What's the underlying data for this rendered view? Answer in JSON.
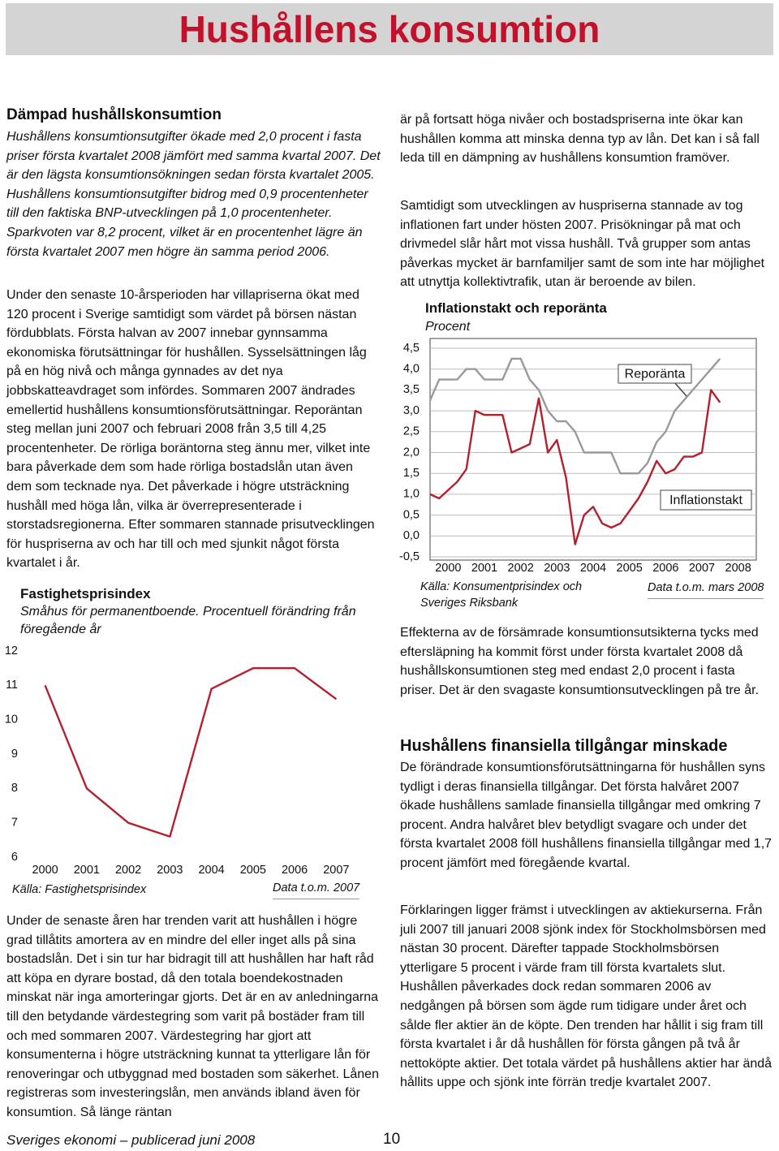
{
  "header": {
    "title": "Hushållens konsumtion"
  },
  "left_column": {
    "heading": "Dämpad hushållskonsumtion",
    "lead": "Hushållens konsumtionsutgifter ökade med 2,0 procent i fasta priser första kvartalet 2008 jämfört med samma kvartal 2007. Det är den lägsta konsumtionsökningen sedan första kvartalet 2005. Hushållens konsumtionsutgifter bidrog med 0,9 procentenheter till den faktiska BNP-utvecklingen på 1,0 procentenheter. Sparkvoten var 8,2 procent, vilket är en procentenhet lägre än första kvartalet 2007 men högre än samma period 2006.",
    "paragraphs": [
      "Under den senaste 10-årsperioden har villapriserna ökat med 120 procent i Sverige samtidigt som värdet på börsen nästan fördubblats. Första halvan av 2007 innebar gynnsamma ekonomiska förutsättningar för hushållen. Sysselsättningen låg på en hög nivå och många gynnades av det nya jobbskatteavdraget som infördes. Sommaren 2007 ändrades emellertid hushållens konsumtionsförutsättningar. Reporäntan steg mellan juni 2007 och februari 2008 från 3,5 till 4,25 procentenheter. De rörliga boräntorna steg ännu mer, vilket inte bara påverkade dem som hade rörliga bostadslån utan även dem som tecknade nya. Det påverkade i högre utsträckning hushåll med höga lån, vilka är överrepresenterade i storstadsregionerna. Efter sommaren stannade prisutvecklingen för huspriserna av och har till och med sjunkit något första kvartalet i år.",
      "Under de senaste åren har trenden varit att hushållen i högre grad tillåtits amortera av en mindre del eller inget alls på sina bostadslån. Det i sin tur har bidragit till att hushållen har haft råd att köpa en dyrare bostad, då den totala boendekostnaden minskat när inga amorteringar gjorts. Det är en av anledningarna till den betydande värdestegring som varit på bostäder fram till och med sommaren 2007. Värdestegring har gjort att konsumenterna i högre utsträckning kunnat ta ytterligare lån för renoveringar och utbyggnad med bostaden som säkerhet. Lånen registreras som investeringslån, men används ibland även för konsumtion. Så länge räntan"
    ]
  },
  "right_column": {
    "paragraphs_top": [
      "är på fortsatt höga nivåer och bostadspriserna inte ökar kan hushållen komma att minska denna typ av lån. Det kan i så fall leda till en dämpning av hushållens konsumtion framöver.",
      "Samtidigt som utvecklingen av huspriserna stannade av tog inflationen fart under hösten 2007. Prisökningar på mat och drivmedel slår hårt mot vissa hushåll. Två grupper som antas påverkas mycket är barnfamiljer samt de som inte har möjlighet att utnyttja kollektivtrafik, utan är beroende av bilen."
    ],
    "paragraph_mid": "Effekterna av de försämrade konsumtionsutsikterna tycks med eftersläpning ha kommit först under första kvartalet 2008 då hushållskonsumtionen steg med endast 2,0 procent i fasta priser. Det är den svagaste konsumtionsutvecklingen på tre år.",
    "heading": "Hushållens finansiella tillgångar minskade",
    "paragraphs": [
      "De förändrade konsumtionsförutsättningarna för hushållen syns tydligt i deras finansiella tillgångar. Det första halvåret 2007 ökade hushållens samlade finansiella tillgångar med omkring 7 procent. Andra halvåret blev betydligt svagare och under det första kvartalet 2008 föll hushållens finansiella tillgångar med 1,7 procent jämfört med föregående kvartal.",
      "Förklaringen ligger främst i utvecklingen av aktiekurserna. Från juli 2007 till januari 2008 sjönk index för Stockholmsbörsen med nästan 30 procent. Därefter tappade Stockholmsbörsen ytterligare 5 procent i värde fram till första kvartalets slut. Hushållen påverkades dock redan sommaren 2006 av nedgången på börsen som ägde rum tidigare under året och sålde fler aktier än de köpte. Den trenden har hållit i sig fram till första kvartalet i år då hushållen för första gången på två år nettoköpte aktier. Det totala värdet på hushållens aktier har ändå hållits uppe och sjönk inte förrän tredje kvartalet 2007."
    ]
  },
  "chart_data": [
    {
      "type": "line",
      "title": "Fastighetsprisindex",
      "subtitle": "Småhus för permanentboende. Procentuell förändring från föregående år",
      "x": [
        2000,
        2001,
        2002,
        2003,
        2004,
        2005,
        2006,
        2007
      ],
      "series": [
        {
          "color": "#b3202e",
          "values": [
            11.0,
            8.0,
            7.0,
            6.6,
            10.9,
            11.5,
            11.5,
            10.6
          ]
        }
      ],
      "xlim": [
        1999.5,
        2007.5
      ],
      "xticks": [
        2000,
        2001,
        2002,
        2003,
        2004,
        2005,
        2006,
        2007
      ],
      "ylim": [
        6,
        12
      ],
      "yticks": [
        6,
        7,
        8,
        9,
        10,
        11,
        12
      ],
      "grid": false,
      "source": "Källa: Fastighetsprisindex",
      "note": "Data t.o.m. 2007"
    },
    {
      "type": "line",
      "title": "Inflationstakt och reporänta",
      "subtitle": "Procent",
      "x": [
        2000,
        2000.25,
        2000.5,
        2000.75,
        2001,
        2001.25,
        2001.5,
        2001.75,
        2002,
        2002.25,
        2002.5,
        2002.75,
        2003,
        2003.25,
        2003.5,
        2003.75,
        2004,
        2004.25,
        2004.5,
        2004.75,
        2005,
        2005.25,
        2005.5,
        2005.75,
        2006,
        2006.25,
        2006.5,
        2006.75,
        2007,
        2007.25,
        2007.5,
        2007.75,
        2008
      ],
      "series": [
        {
          "name": "Reporänta",
          "color": "#9a9a9a",
          "values": [
            3.25,
            3.75,
            3.75,
            3.75,
            4.0,
            4.0,
            3.75,
            3.75,
            3.75,
            4.25,
            4.25,
            3.75,
            3.5,
            3.0,
            2.75,
            2.75,
            2.5,
            2.0,
            2.0,
            2.0,
            2.0,
            1.5,
            1.5,
            1.5,
            1.75,
            2.25,
            2.5,
            3.0,
            3.25,
            3.5,
            3.75,
            4.0,
            4.25
          ]
        },
        {
          "name": "Inflationstakt",
          "color": "#b3202e",
          "values": [
            1.0,
            0.9,
            1.1,
            1.3,
            1.6,
            3.0,
            2.9,
            2.9,
            2.9,
            2.0,
            2.1,
            2.2,
            3.3,
            2.0,
            2.3,
            1.4,
            -0.2,
            0.5,
            0.7,
            0.3,
            0.2,
            0.3,
            0.6,
            0.9,
            1.3,
            1.8,
            1.5,
            1.6,
            1.9,
            1.9,
            2.0,
            3.5,
            3.2
          ]
        }
      ],
      "xlim": [
        2000,
        2009
      ],
      "xticks": [
        {
          "value": 2000.5,
          "label": "2000"
        },
        {
          "value": 2001.5,
          "label": "2001"
        },
        {
          "value": 2002.5,
          "label": "2002"
        },
        {
          "value": 2003.5,
          "label": "2003"
        },
        {
          "value": 2004.5,
          "label": "2004"
        },
        {
          "value": 2005.5,
          "label": "2005"
        },
        {
          "value": 2006.5,
          "label": "2006"
        },
        {
          "value": 2007.5,
          "label": "2007"
        },
        {
          "value": 2008.5,
          "label": "2008"
        }
      ],
      "ylim": [
        -0.5,
        4.5
      ],
      "yticks": [
        {
          "value": -0.5,
          "label": "-0,5"
        },
        {
          "value": 0,
          "label": "0,0"
        },
        {
          "value": 0.5,
          "label": "0,5"
        },
        {
          "value": 1,
          "label": "1,0"
        },
        {
          "value": 1.5,
          "label": "1,5"
        },
        {
          "value": 2,
          "label": "2,0"
        },
        {
          "value": 2.5,
          "label": "2,5"
        },
        {
          "value": 3,
          "label": "3,0"
        },
        {
          "value": 3.5,
          "label": "3,5"
        },
        {
          "value": 4,
          "label": "4,0"
        },
        {
          "value": 4.5,
          "label": "4,5"
        }
      ],
      "grid": true,
      "source": "Källa: Konsumentprisindex och Sveriges Riksbank",
      "note": "Data t.o.m. mars 2008"
    }
  ],
  "footer": {
    "publication": "Sveriges ekonomi – publicerad juni 2008",
    "page_number": 10
  }
}
